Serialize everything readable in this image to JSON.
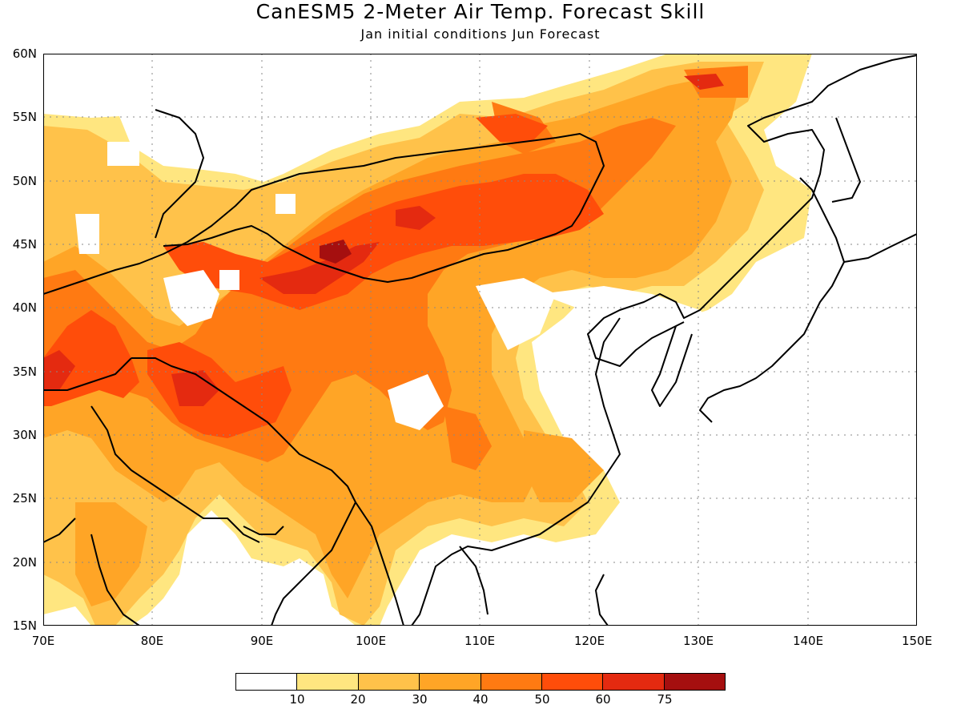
{
  "title": "CanESM5 2-Meter Air Temp. Forecast Skill",
  "subtitle": "Jan initial conditions  Jun Forecast",
  "lat_labels": [
    "60N",
    "55N",
    "50N",
    "45N",
    "40N",
    "35N",
    "30N",
    "25N",
    "20N",
    "15N"
  ],
  "lon_labels": [
    "70E",
    "80E",
    "90E",
    "100E",
    "110E",
    "120E",
    "130E",
    "140E",
    "150E"
  ],
  "legend": {
    "colors": [
      "#ffffff",
      "#ffe680",
      "#ffc24a",
      "#ffa526",
      "#ff7a12",
      "#ff4d0a",
      "#e42a10",
      "#a50f0f"
    ],
    "ticks": [
      "10",
      "20",
      "30",
      "40",
      "50",
      "60",
      "75"
    ]
  },
  "map": {
    "region": {
      "lon_min": 70,
      "lon_max": 150,
      "lat_min": 15,
      "lat_max": 60
    },
    "variable": "2-Meter Air Temp. Forecast Skill",
    "grid": "dotted"
  }
}
